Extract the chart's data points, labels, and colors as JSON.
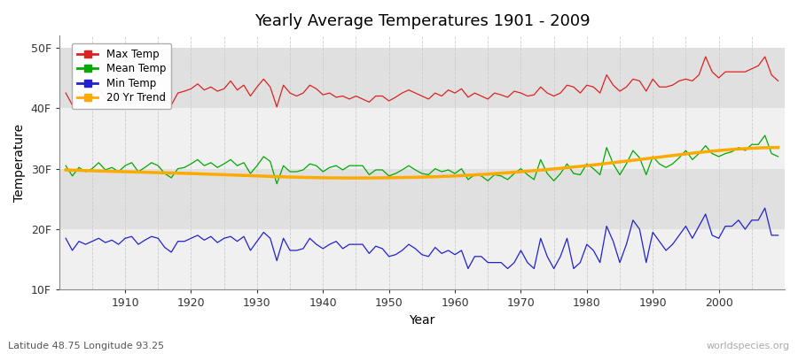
{
  "title": "Yearly Average Temperatures 1901 - 2009",
  "xlabel": "Year",
  "ylabel": "Temperature",
  "subtitle": "Latitude 48.75 Longitude 93.25",
  "watermark": "worldspecies.org",
  "years": [
    1901,
    1902,
    1903,
    1904,
    1905,
    1906,
    1907,
    1908,
    1909,
    1910,
    1911,
    1912,
    1913,
    1914,
    1915,
    1916,
    1917,
    1918,
    1919,
    1920,
    1921,
    1922,
    1923,
    1924,
    1925,
    1926,
    1927,
    1928,
    1929,
    1930,
    1931,
    1932,
    1933,
    1934,
    1935,
    1936,
    1937,
    1938,
    1939,
    1940,
    1941,
    1942,
    1943,
    1944,
    1945,
    1946,
    1947,
    1948,
    1949,
    1950,
    1951,
    1952,
    1953,
    1954,
    1955,
    1956,
    1957,
    1958,
    1959,
    1960,
    1961,
    1962,
    1963,
    1964,
    1965,
    1966,
    1967,
    1968,
    1969,
    1970,
    1971,
    1972,
    1973,
    1974,
    1975,
    1976,
    1977,
    1978,
    1979,
    1980,
    1981,
    1982,
    1983,
    1984,
    1985,
    1986,
    1987,
    1988,
    1989,
    1990,
    1991,
    1992,
    1993,
    1994,
    1995,
    1996,
    1997,
    1998,
    1999,
    2000,
    2001,
    2002,
    2003,
    2004,
    2005,
    2006,
    2007,
    2008,
    2009
  ],
  "max_temp": [
    42.5,
    40.5,
    42.8,
    41.2,
    41.8,
    43.5,
    41.5,
    42.3,
    41.8,
    43.0,
    43.5,
    41.8,
    42.5,
    43.8,
    42.5,
    41.5,
    40.5,
    42.5,
    42.8,
    43.2,
    44.0,
    43.0,
    43.5,
    42.8,
    43.2,
    44.5,
    43.0,
    43.8,
    42.0,
    43.5,
    44.8,
    43.5,
    40.2,
    43.8,
    42.5,
    42.0,
    42.5,
    43.8,
    43.2,
    42.2,
    42.5,
    41.8,
    42.0,
    41.5,
    42.0,
    41.5,
    41.0,
    42.0,
    42.0,
    41.2,
    41.8,
    42.5,
    43.0,
    42.5,
    42.0,
    41.5,
    42.5,
    42.0,
    43.0,
    42.5,
    43.2,
    41.8,
    42.5,
    42.0,
    41.5,
    42.5,
    42.2,
    41.8,
    42.8,
    42.5,
    42.0,
    42.2,
    43.5,
    42.5,
    42.0,
    42.5,
    43.8,
    43.5,
    42.5,
    43.8,
    43.5,
    42.5,
    45.5,
    43.8,
    42.8,
    43.5,
    44.8,
    44.5,
    42.8,
    44.8,
    43.5,
    43.5,
    43.8,
    44.5,
    44.8,
    44.5,
    45.5,
    48.5,
    46.0,
    45.0,
    46.0,
    46.0,
    46.0,
    46.0,
    46.5,
    47.0,
    48.5,
    45.5,
    44.5
  ],
  "mean_temp": [
    30.5,
    28.8,
    30.2,
    29.5,
    30.0,
    31.0,
    29.8,
    30.2,
    29.5,
    30.5,
    31.0,
    29.5,
    30.2,
    31.0,
    30.5,
    29.2,
    28.5,
    30.0,
    30.2,
    30.8,
    31.5,
    30.5,
    31.0,
    30.2,
    30.8,
    31.5,
    30.5,
    31.0,
    29.2,
    30.5,
    32.0,
    31.2,
    27.5,
    30.5,
    29.5,
    29.5,
    29.8,
    30.8,
    30.5,
    29.5,
    30.2,
    30.5,
    29.8,
    30.5,
    30.5,
    30.5,
    29.0,
    29.8,
    29.8,
    28.8,
    29.2,
    29.8,
    30.5,
    29.8,
    29.2,
    29.0,
    30.0,
    29.5,
    29.8,
    29.2,
    30.0,
    28.2,
    29.0,
    28.8,
    28.0,
    29.0,
    28.8,
    28.2,
    29.2,
    30.0,
    29.0,
    28.2,
    31.5,
    29.2,
    28.0,
    29.2,
    30.8,
    29.2,
    29.0,
    30.8,
    30.0,
    29.0,
    33.5,
    30.8,
    29.0,
    30.8,
    33.0,
    31.8,
    29.0,
    32.0,
    30.8,
    30.2,
    30.8,
    31.8,
    33.0,
    31.5,
    32.5,
    33.8,
    32.5,
    32.0,
    32.5,
    32.8,
    33.5,
    33.0,
    34.0,
    34.0,
    35.5,
    32.5,
    32.0
  ],
  "min_temp": [
    18.5,
    16.5,
    18.0,
    17.5,
    18.0,
    18.5,
    17.8,
    18.2,
    17.5,
    18.5,
    18.8,
    17.5,
    18.2,
    18.8,
    18.5,
    17.0,
    16.2,
    18.0,
    18.0,
    18.5,
    19.0,
    18.2,
    18.8,
    17.8,
    18.5,
    18.8,
    18.0,
    18.8,
    16.5,
    18.0,
    19.5,
    18.5,
    14.8,
    18.5,
    16.5,
    16.5,
    16.8,
    18.5,
    17.5,
    16.8,
    17.5,
    18.0,
    16.8,
    17.5,
    17.5,
    17.5,
    16.0,
    17.2,
    16.8,
    15.5,
    15.8,
    16.5,
    17.5,
    16.8,
    15.8,
    15.5,
    17.0,
    16.0,
    16.5,
    15.8,
    16.5,
    13.5,
    15.5,
    15.5,
    14.5,
    14.5,
    14.5,
    13.5,
    14.5,
    16.5,
    14.5,
    13.5,
    18.5,
    15.5,
    13.5,
    15.5,
    18.5,
    13.5,
    14.5,
    17.5,
    16.5,
    14.5,
    20.5,
    18.0,
    14.5,
    17.5,
    21.5,
    20.0,
    14.5,
    19.5,
    18.0,
    16.5,
    17.5,
    19.0,
    20.5,
    18.5,
    20.5,
    22.5,
    19.0,
    18.5,
    20.5,
    20.5,
    21.5,
    20.0,
    21.5,
    21.5,
    23.5,
    19.0,
    19.0
  ],
  "trend_years": [
    1901,
    1910,
    1920,
    1930,
    1940,
    1950,
    1960,
    1970,
    1980,
    1990,
    2000,
    2009
  ],
  "trend_vals": [
    29.8,
    29.5,
    29.2,
    28.8,
    28.5,
    28.5,
    28.8,
    29.5,
    30.5,
    31.8,
    33.0,
    33.5
  ],
  "max_color": "#dd2222",
  "mean_color": "#00aa00",
  "min_color": "#2222cc",
  "trend_color": "#ffaa00",
  "bg_color": "#ffffff",
  "band_light": "#f0f0f0",
  "band_dark": "#e0e0e0",
  "grid_color": "#cccccc",
  "ylim": [
    10,
    52
  ],
  "yticks": [
    10,
    20,
    30,
    40,
    50
  ],
  "ytick_labels": [
    "10F",
    "20F",
    "30F",
    "40F",
    "50F"
  ],
  "legend_items": [
    "Max Temp",
    "Mean Temp",
    "Min Temp",
    "20 Yr Trend"
  ],
  "legend_colors": [
    "#dd2222",
    "#00aa00",
    "#2222cc",
    "#ffaa00"
  ]
}
